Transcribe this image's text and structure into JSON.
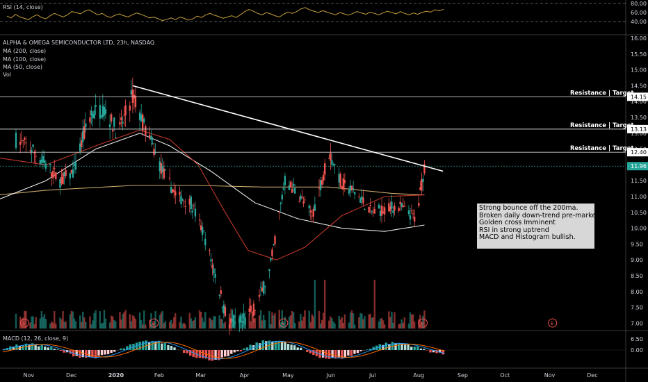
{
  "rsi_panel": {
    "label": "RSI (14, close)",
    "ticks": [
      "80.00",
      "60.00",
      "40.00"
    ]
  },
  "main_panel": {
    "title": "ALPHA & OMEGA SEMICONDUCTOR LTD, 23h, NASDAQ",
    "indicators": [
      "MA (200, close)",
      "MA (100, close)",
      "MA (50, close)",
      "Vol"
    ],
    "y_ticks": [
      "16.00",
      "15.50",
      "15.00",
      "14.50",
      "14.00",
      "13.50",
      "13.00",
      "12.50",
      "12.00",
      "11.50",
      "11.00",
      "10.50",
      "10.00",
      "9.50",
      "9.00",
      "8.50",
      "8.00",
      "7.50",
      "7.00",
      "6.50"
    ],
    "price_tags": [
      {
        "text": "14.15",
        "value": 14.15,
        "color": "#ffffff"
      },
      {
        "text": "13.13",
        "value": 13.13,
        "color": "#ffffff"
      },
      {
        "text": "12.40",
        "value": 12.4,
        "color": "#ffffff"
      },
      {
        "text": "11.96",
        "value": 11.96,
        "color": "#26a69a"
      }
    ],
    "resistance_labels": [
      "Resistance | Target",
      "Resistance | Target",
      "Resistance | Target"
    ],
    "annotation": [
      "Strong bounce off the 200ma.",
      "Broken daily down-trend pre-market",
      "Golden cross Imminent",
      "RSI in strong uptrend",
      "MACD and Histogram bullish."
    ],
    "event_markers": [
      "E",
      "E",
      "E",
      "E",
      "E"
    ]
  },
  "macd_panel": {
    "label": "MACD (12, 26, close, 9)",
    "ticks": [
      "0.00"
    ]
  },
  "x_axis": {
    "labels": [
      "Nov",
      "Dec",
      "2020",
      "Feb",
      "Mar",
      "Apr",
      "May",
      "Jun",
      "Jul",
      "Aug",
      "Sep",
      "Oct",
      "Nov",
      "Dec"
    ]
  },
  "colors": {
    "up": "#26a69a",
    "down": "#ef5350",
    "ma200": "#e8e8e8",
    "ma100": "#c9a86a",
    "ma50": "#c0392b",
    "trendline": "#ffffff",
    "rsi": "#c8a03c",
    "macd": "#2196f3",
    "signal": "#ff6d00"
  },
  "chart_data": {
    "type": "candlestick",
    "ylim": [
      6.5,
      16.0
    ],
    "resistance_levels": [
      14.15,
      13.13,
      12.4
    ],
    "last_price": 11.96,
    "trendline": {
      "from": [
        "2020-01-15",
        14.5
      ],
      "to": [
        "2020-08-20",
        11.8
      ]
    },
    "price_path": {
      "dates": [
        "2019-10-25",
        "2019-11-05",
        "2019-11-15",
        "2019-11-25",
        "2019-12-05",
        "2019-12-15",
        "2019-12-25",
        "2020-01-05",
        "2020-01-15",
        "2020-01-25",
        "2020-02-05",
        "2020-02-15",
        "2020-02-25",
        "2020-03-05",
        "2020-03-15",
        "2020-03-22",
        "2020-04-01",
        "2020-04-10",
        "2020-04-20",
        "2020-05-01",
        "2020-05-10",
        "2020-05-20",
        "2020-06-01",
        "2020-06-10",
        "2020-06-20",
        "2020-07-01",
        "2020-07-10",
        "2020-07-20",
        "2020-08-01",
        "2020-08-07"
      ],
      "close": [
        12.8,
        12.5,
        12.0,
        11.5,
        11.8,
        13.5,
        13.8,
        13.0,
        14.2,
        13.0,
        11.8,
        11.0,
        10.8,
        9.8,
        8.2,
        7.0,
        7.0,
        7.5,
        8.6,
        11.5,
        11.1,
        10.4,
        12.4,
        11.4,
        11.1,
        10.5,
        10.6,
        10.7,
        10.3,
        11.96
      ]
    }
  }
}
